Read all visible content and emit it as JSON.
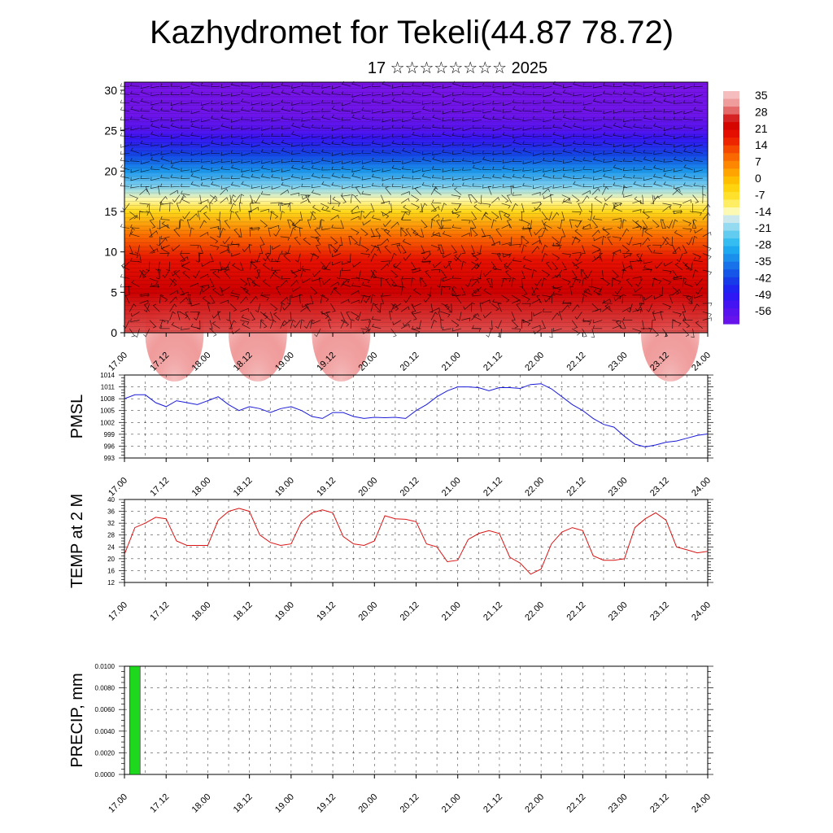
{
  "title": "Kazhydromet for Tekeli(44.87 78.72)",
  "subtitle": "17 ☆☆☆☆☆☆☆☆ 2025",
  "colors": {
    "pmsl_line": "#1a1adb",
    "temp_line": "#d91414",
    "precip_bar": "#1ed81e",
    "grid": "#000000"
  },
  "time_ticks": [
    "17.00",
    "17.12",
    "18.00",
    "18.12",
    "19.00",
    "19.12",
    "20.00",
    "20.12",
    "21.00",
    "21.12",
    "22.00",
    "22.12",
    "23.00",
    "23.12",
    "24.00"
  ],
  "chart_data": [
    {
      "id": "cross_section",
      "type": "heatmap",
      "ylim": [
        0,
        31
      ],
      "y_ticks": [
        0,
        5,
        10,
        15,
        20,
        25,
        30
      ],
      "colorbar": {
        "labels": [
          "35",
          "28",
          "21",
          "14",
          "7",
          "0",
          "-7",
          "-14",
          "-21",
          "-28",
          "-35",
          "-42",
          "-49",
          "-56"
        ],
        "range": [
          -63,
          42
        ]
      },
      "profile": [
        {
          "y": 0,
          "value": 32
        },
        {
          "y": 5,
          "value": 28
        },
        {
          "y": 9,
          "value": 22
        },
        {
          "y": 12,
          "value": 12
        },
        {
          "y": 15,
          "value": -3
        },
        {
          "y": 16.5,
          "value": -12
        },
        {
          "y": 18,
          "value": -20
        },
        {
          "y": 20,
          "value": -32
        },
        {
          "y": 22,
          "value": -42
        },
        {
          "y": 24,
          "value": -52
        },
        {
          "y": 25,
          "value": -57
        },
        {
          "y": 27,
          "value": -63
        },
        {
          "y": 31,
          "value": -66
        }
      ],
      "surface_peaks_day": [
        17.6,
        18.6,
        19.6,
        23.55
      ],
      "overlay": "wind barbs"
    },
    {
      "id": "pmsl",
      "type": "line",
      "ylabel": "PMSL",
      "ylim": [
        993,
        1014
      ],
      "y_ticks": [
        993,
        996,
        999,
        1002,
        1005,
        1008,
        1011,
        1014
      ],
      "x": [
        17.0,
        17.125,
        17.25,
        17.375,
        17.5,
        17.625,
        17.75,
        17.875,
        18.0,
        18.125,
        18.25,
        18.375,
        18.5,
        18.625,
        18.75,
        18.875,
        19.0,
        19.125,
        19.25,
        19.375,
        19.5,
        19.625,
        19.75,
        19.875,
        20.0,
        20.125,
        20.25,
        20.375,
        20.5,
        20.625,
        20.75,
        20.875,
        21.0,
        21.125,
        21.25,
        21.375,
        21.5,
        21.625,
        21.75,
        21.875,
        22.0,
        22.125,
        22.25,
        22.375,
        22.5,
        22.625,
        22.75,
        22.875,
        23.0,
        23.125,
        23.25,
        23.375,
        23.5,
        23.625,
        23.75,
        23.875,
        24.0
      ],
      "series": [
        {
          "values": [
            1008,
            1009,
            1009,
            1007,
            1006,
            1007.5,
            1007,
            1006.5,
            1007.5,
            1008.5,
            1006.5,
            1005,
            1006,
            1005.5,
            1004.5,
            1005.5,
            1006,
            1005,
            1003.5,
            1003,
            1004.5,
            1004.5,
            1003.5,
            1003,
            1003.3,
            1003.2,
            1003.3,
            1003,
            1005,
            1006.5,
            1008.5,
            1010,
            1011,
            1011,
            1010.8,
            1010,
            1010.8,
            1010.8,
            1010.6,
            1011.6,
            1011.8,
            1010.5,
            1008.5,
            1006.5,
            1005,
            1003,
            1001.5,
            1000.8,
            998.5,
            996.5,
            995.8,
            996.3,
            997,
            997.3,
            998,
            998.7,
            999.1
          ]
        }
      ]
    },
    {
      "id": "temp",
      "type": "line",
      "ylabel": "TEMP at 2 M",
      "ylim": [
        12,
        40
      ],
      "y_ticks": [
        12,
        16,
        20,
        24,
        28,
        32,
        36,
        40
      ],
      "x": [
        17.0,
        17.125,
        17.25,
        17.375,
        17.5,
        17.625,
        17.75,
        17.875,
        18.0,
        18.125,
        18.25,
        18.375,
        18.5,
        18.625,
        18.75,
        18.875,
        19.0,
        19.125,
        19.25,
        19.375,
        19.5,
        19.625,
        19.75,
        19.875,
        20.0,
        20.125,
        20.25,
        20.375,
        20.5,
        20.625,
        20.75,
        20.875,
        21.0,
        21.125,
        21.25,
        21.375,
        21.5,
        21.625,
        21.75,
        21.875,
        22.0,
        22.125,
        22.25,
        22.375,
        22.5,
        22.625,
        22.75,
        22.875,
        23.0,
        23.125,
        23.25,
        23.375,
        23.5,
        23.625,
        23.75,
        23.875,
        24.0
      ],
      "series": [
        {
          "values": [
            21.5,
            30.5,
            32,
            34,
            33.5,
            26,
            24.5,
            24.5,
            24.5,
            33,
            36,
            37,
            36,
            28,
            25.5,
            24.5,
            25,
            32.5,
            35.5,
            36.5,
            35.5,
            27.5,
            25,
            24.5,
            26,
            34.5,
            33.5,
            33.3,
            32.5,
            25,
            24,
            19,
            19.5,
            26.5,
            28.5,
            29.5,
            28.5,
            20.5,
            18.5,
            14.8,
            16.5,
            25,
            29,
            30.5,
            29.5,
            21,
            19.5,
            19.5,
            20,
            30.5,
            33.5,
            35.5,
            33,
            24,
            23,
            22,
            22.5
          ]
        }
      ]
    },
    {
      "id": "precip",
      "type": "bar",
      "ylabel": "PRECIP, mm",
      "ylim": [
        0,
        0.01
      ],
      "y_ticks": [
        "0.0000",
        "0.0020",
        "0.0040",
        "0.0060",
        "0.0080",
        "0.0100"
      ],
      "bars": [
        {
          "x": 17.125,
          "value": 0.01
        }
      ]
    }
  ]
}
